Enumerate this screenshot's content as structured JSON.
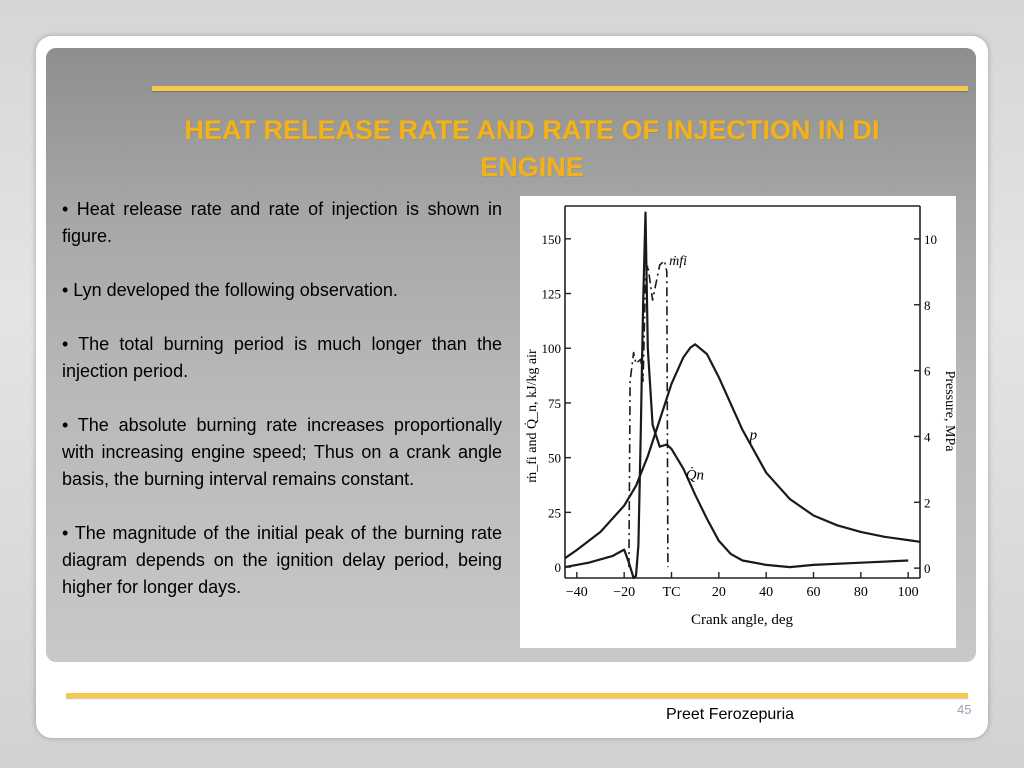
{
  "slide": {
    "title": "HEAT RELEASE RATE AND RATE OF INJECTION IN DI\nENGINE",
    "bullets": [
      "• Heat release rate and rate of injection is shown in figure.",
      "• Lyn developed the following observation.",
      "• The total burning period is much longer than the injection period.",
      "• The absolute burning rate increases proportionally with increasing engine speed; Thus on a crank angle basis, the burning interval remains constant.",
      "• The magnitude of the initial peak of the burning rate diagram depends on the ignition delay period, being higher for longer days."
    ],
    "footer_author": "Preet Ferozepuria",
    "page_number": "45"
  },
  "colors": {
    "title": "#f5b216",
    "accent_line": "#f5c94a",
    "panel": "#a8a8a8"
  },
  "chart_data": {
    "type": "line",
    "xlabel": "Crank angle, deg",
    "ylabel": "ṁ_fi and Q̇_n, kJ/kg air",
    "y2label": "Pressure, MPa",
    "xlim": [
      -45,
      105
    ],
    "ylim": [
      -5,
      165
    ],
    "y2lim": [
      -0.3,
      11
    ],
    "x_ticks": [
      -40,
      -20,
      0,
      20,
      40,
      60,
      80,
      100
    ],
    "x_tick_labels": [
      "−40",
      "−20",
      "TC",
      "20",
      "40",
      "60",
      "80",
      "100"
    ],
    "y_ticks": [
      0,
      25,
      50,
      75,
      100,
      125,
      150
    ],
    "y2_ticks": [
      0,
      2,
      4,
      6,
      8,
      10
    ],
    "grid": false,
    "series": [
      {
        "name": "p",
        "axis": "right",
        "x": [
          -45,
          -40,
          -30,
          -20,
          -15,
          -10,
          -5,
          0,
          5,
          8,
          10,
          15,
          20,
          30,
          40,
          50,
          60,
          70,
          80,
          90,
          100,
          105
        ],
        "y": [
          0.3,
          0.55,
          1.1,
          1.9,
          2.5,
          3.4,
          4.5,
          5.6,
          6.4,
          6.7,
          6.8,
          6.5,
          5.8,
          4.2,
          2.9,
          2.1,
          1.6,
          1.3,
          1.1,
          0.95,
          0.85,
          0.8
        ]
      },
      {
        "name": "Q̇n",
        "axis": "left",
        "x": [
          -45,
          -35,
          -25,
          -20,
          -18,
          -16,
          -15,
          -14,
          -13,
          -12,
          -11,
          -10,
          -8,
          -5,
          -2,
          0,
          5,
          10,
          15,
          20,
          25,
          30,
          40,
          50,
          60,
          80,
          100
        ],
        "y": [
          0,
          2,
          5,
          8,
          2,
          -5,
          -4,
          10,
          60,
          120,
          162,
          100,
          65,
          55,
          56,
          54,
          45,
          33,
          22,
          12,
          6,
          3,
          1,
          0,
          1,
          2,
          3
        ]
      },
      {
        "name": "ṁfi",
        "axis": "left",
        "x": [
          -18,
          -17.5,
          -16,
          -15,
          -13,
          -12,
          -11,
          -10,
          -8,
          -5,
          -3,
          -2,
          -1.5
        ],
        "y": [
          0,
          85,
          98,
          93,
          95,
          85,
          132,
          138,
          122,
          138,
          140,
          135,
          0
        ]
      }
    ],
    "annotations": [
      "ṁfi",
      "p",
      "Q̇n"
    ]
  }
}
